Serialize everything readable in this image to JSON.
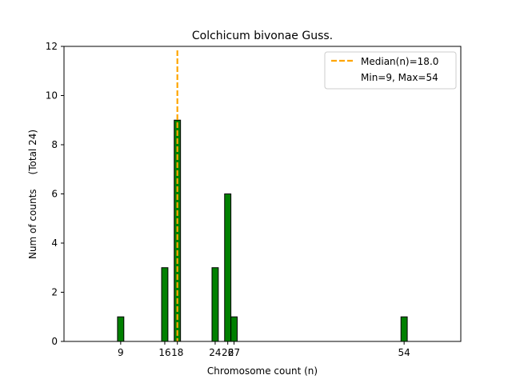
{
  "chart_data": {
    "type": "bar",
    "title": "Colchicum bivonae Guss.",
    "xlabel": "Chromosome count (n)",
    "ylabel": "Num of counts",
    "ylabel2": "(Total 24)",
    "categories": [
      "9",
      "16",
      "18",
      "24",
      "26",
      "27",
      "54"
    ],
    "x": [
      9,
      16,
      18,
      24,
      26,
      27,
      54
    ],
    "values": [
      1,
      3,
      9,
      3,
      6,
      1,
      1
    ],
    "xlim": [
      0,
      63
    ],
    "ylim": [
      0,
      12
    ],
    "yticks": [
      0,
      2,
      4,
      6,
      8,
      10,
      12
    ],
    "bar_color": "#008000",
    "bar_edge_color": "#000000",
    "median": 18.0,
    "median_color": "#ffa500",
    "legend": {
      "position": "top-right",
      "entries": [
        "Median(n)=18.0",
        "Min=9, Max=54"
      ]
    },
    "grid": false
  }
}
